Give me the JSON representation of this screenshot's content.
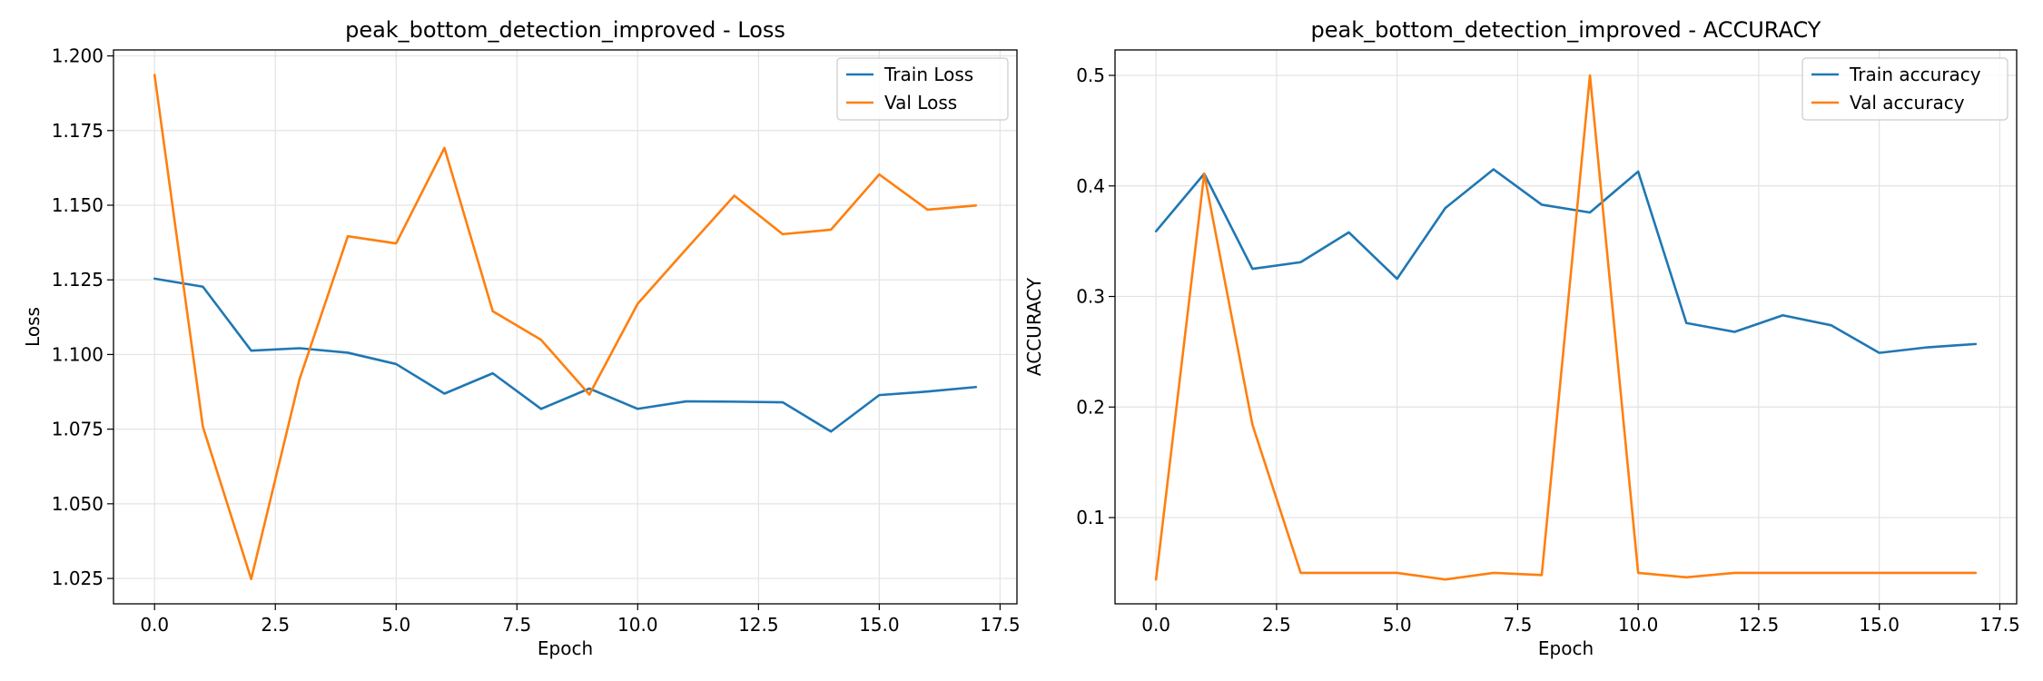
{
  "chart_data": [
    {
      "type": "line",
      "title": "peak_bottom_detection_improved - Loss",
      "xlabel": "Epoch",
      "ylabel": "Loss",
      "xlim": [
        -0.85,
        17.85
      ],
      "ylim": [
        1.0165,
        1.202
      ],
      "xticks": [
        0.0,
        2.5,
        5.0,
        7.5,
        10.0,
        12.5,
        15.0,
        17.5
      ],
      "xtick_labels": [
        "0.0",
        "2.5",
        "5.0",
        "7.5",
        "10.0",
        "12.5",
        "15.0",
        "17.5"
      ],
      "yticks": [
        1.025,
        1.05,
        1.075,
        1.1,
        1.125,
        1.15,
        1.175,
        1.2
      ],
      "ytick_labels": [
        "1.025",
        "1.050",
        "1.075",
        "1.100",
        "1.125",
        "1.150",
        "1.175",
        "1.200"
      ],
      "grid": true,
      "legend": "top-right",
      "x": [
        0,
        1,
        2,
        3,
        4,
        5,
        6,
        7,
        8,
        9,
        10,
        11,
        12,
        13,
        14,
        15,
        16,
        17
      ],
      "series": [
        {
          "name": "Train Loss",
          "color": "#1f77b4",
          "values": [
            1.1254,
            1.1227,
            1.1013,
            1.1021,
            1.1006,
            1.0968,
            1.0869,
            1.0937,
            1.0818,
            1.0886,
            1.0818,
            1.0843,
            1.0842,
            1.084,
            1.0742,
            1.0864,
            1.0876,
            1.0891
          ]
        },
        {
          "name": "Val Loss",
          "color": "#ff7f0e",
          "values": [
            1.1936,
            1.0758,
            1.0248,
            1.0917,
            1.1396,
            1.1372,
            1.1692,
            1.1145,
            1.1049,
            1.0866,
            1.117,
            1.1352,
            1.1532,
            1.1403,
            1.1418,
            1.1603,
            1.1485,
            1.1499
          ]
        }
      ]
    },
    {
      "type": "line",
      "title": "peak_bottom_detection_improved - ACCURACY",
      "xlabel": "Epoch",
      "ylabel": "ACCURACY",
      "xlim": [
        -0.85,
        17.85
      ],
      "ylim": [
        0.022,
        0.523
      ],
      "xticks": [
        0.0,
        2.5,
        5.0,
        7.5,
        10.0,
        12.5,
        15.0,
        17.5
      ],
      "xtick_labels": [
        "0.0",
        "2.5",
        "5.0",
        "7.5",
        "10.0",
        "12.5",
        "15.0",
        "17.5"
      ],
      "yticks": [
        0.1,
        0.2,
        0.3,
        0.4,
        0.5
      ],
      "ytick_labels": [
        "0.1",
        "0.2",
        "0.3",
        "0.4",
        "0.5"
      ],
      "grid": true,
      "legend": "top-right",
      "x": [
        0,
        1,
        2,
        3,
        4,
        5,
        6,
        7,
        8,
        9,
        10,
        11,
        12,
        13,
        14,
        15,
        16,
        17
      ],
      "series": [
        {
          "name": "Train accuracy",
          "color": "#1f77b4",
          "values": [
            0.359,
            0.411,
            0.325,
            0.331,
            0.358,
            0.316,
            0.38,
            0.415,
            0.383,
            0.376,
            0.413,
            0.276,
            0.268,
            0.283,
            0.274,
            0.249,
            0.254,
            0.257
          ]
        },
        {
          "name": "Val accuracy",
          "color": "#ff7f0e",
          "values": [
            0.044,
            0.411,
            0.184,
            0.05,
            0.05,
            0.05,
            0.044,
            0.05,
            0.048,
            0.5,
            0.05,
            0.046,
            0.05,
            0.05,
            0.05,
            0.05,
            0.05,
            0.05
          ]
        }
      ]
    }
  ]
}
